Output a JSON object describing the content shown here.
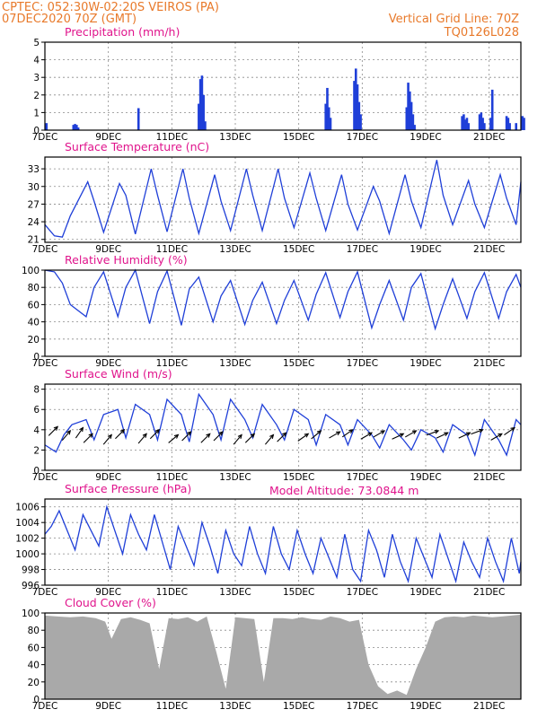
{
  "header": {
    "line1_left": "CPTEC:   052:30W-02:20S   VEIROS (PA)",
    "line2_left": "07DEC2020 70Z (GMT)",
    "line1_right": "Vertical Grid Line: 70Z",
    "line2_right": "TQ0126L028",
    "model_altitude": "Model Altitude: 73.0844 m"
  },
  "colors": {
    "header": "#e8792a",
    "title": "#e0148c",
    "series": "#1f3fd8",
    "cloud": "#a9a9a9",
    "wind": "#000000"
  },
  "x_ticks": [
    "7DEC",
    "9DEC",
    "11DEC",
    "13DEC",
    "15DEC",
    "17DEC",
    "19DEC",
    "21DEC"
  ],
  "chart_data": [
    {
      "type": "bar",
      "title": "Precipitation (mm/h)",
      "ylim": [
        0,
        5
      ],
      "yticks": [
        0,
        1,
        2,
        3,
        4,
        5
      ],
      "x_unit": "days since 7DEC 70Z",
      "x": [
        0.05,
        0.9,
        0.95,
        1.0,
        1.05,
        2.95,
        4.85,
        4.9,
        4.95,
        5.0,
        5.05,
        8.85,
        8.9,
        8.95,
        9.0,
        9.75,
        9.8,
        9.85,
        9.9,
        9.95,
        11.4,
        11.45,
        11.5,
        11.55,
        11.6,
        11.65,
        13.15,
        13.2,
        13.25,
        13.3,
        13.35,
        13.7,
        13.75,
        13.8,
        13.85,
        14.05,
        14.1,
        14.55,
        14.6,
        14.65,
        14.85,
        15.05,
        15.1
      ],
      "values": [
        0.4,
        0.3,
        0.35,
        0.3,
        0.15,
        1.25,
        1.5,
        2.9,
        3.1,
        2.0,
        0.5,
        1.5,
        2.4,
        1.3,
        0.7,
        2.8,
        3.5,
        2.6,
        1.6,
        0.9,
        1.3,
        2.7,
        2.2,
        1.6,
        0.9,
        0.3,
        0.8,
        0.9,
        0.6,
        0.7,
        0.4,
        0.9,
        1.0,
        0.7,
        0.4,
        0.7,
        2.3,
        0.8,
        0.7,
        0.4,
        0.4,
        0.8,
        0.7
      ]
    },
    {
      "type": "line",
      "title": "Surface Temperature (nC)",
      "ylim": [
        20.5,
        35
      ],
      "yticks": [
        21,
        24,
        27,
        30,
        33
      ],
      "x_unit": "days since 7DEC 70Z",
      "x": [
        0.0,
        0.3,
        0.55,
        0.8,
        1.35,
        1.55,
        1.85,
        2.35,
        2.55,
        2.85,
        3.35,
        3.55,
        3.85,
        4.35,
        4.55,
        4.85,
        5.35,
        5.55,
        5.85,
        6.35,
        6.55,
        6.85,
        7.35,
        7.55,
        7.85,
        8.35,
        8.55,
        8.85,
        9.35,
        9.55,
        9.85,
        10.35,
        10.55,
        10.85,
        11.35,
        11.55,
        11.85,
        12.35,
        12.55,
        12.85,
        13.35,
        13.55,
        13.85,
        14.35,
        14.55,
        14.85,
        15.0
      ],
      "values": [
        23.5,
        21.6,
        21.4,
        25.0,
        30.8,
        27.5,
        22.2,
        30.5,
        28.5,
        21.9,
        33.0,
        28.5,
        22.3,
        33.0,
        28.0,
        22.0,
        32.0,
        27.5,
        22.5,
        33.0,
        28.5,
        22.5,
        33.0,
        28.0,
        23.0,
        32.3,
        28.0,
        22.5,
        32.0,
        27.0,
        22.6,
        30.0,
        27.5,
        22.0,
        32.0,
        27.5,
        23.0,
        34.5,
        28.5,
        23.5,
        31.0,
        27.0,
        23.0,
        32.0,
        28.0,
        23.5,
        30.8
      ]
    },
    {
      "type": "line",
      "title": "Relative Humidity (%)",
      "ylim": [
        0,
        100
      ],
      "yticks": [
        0,
        20,
        40,
        60,
        80,
        100
      ],
      "x_unit": "days since 7DEC 70Z",
      "x": [
        0.0,
        0.3,
        0.55,
        0.8,
        1.3,
        1.55,
        1.85,
        2.3,
        2.55,
        2.85,
        3.3,
        3.55,
        3.85,
        4.3,
        4.55,
        4.85,
        5.3,
        5.55,
        5.85,
        6.3,
        6.55,
        6.85,
        7.3,
        7.55,
        7.85,
        8.3,
        8.55,
        8.85,
        9.3,
        9.55,
        9.85,
        10.3,
        10.55,
        10.85,
        11.3,
        11.55,
        11.85,
        12.3,
        12.55,
        12.85,
        13.3,
        13.55,
        13.85,
        14.3,
        14.55,
        14.85,
        15.0
      ],
      "values": [
        100,
        98,
        85,
        60,
        46,
        80,
        98,
        46,
        80,
        100,
        38,
        75,
        99,
        36,
        78,
        92,
        40,
        70,
        88,
        37,
        65,
        86,
        38,
        65,
        88,
        42,
        72,
        97,
        45,
        75,
        98,
        33,
        60,
        88,
        42,
        80,
        96,
        32,
        60,
        90,
        44,
        75,
        97,
        44,
        75,
        95,
        80
      ]
    },
    {
      "type": "line",
      "title": "Surface Wind (m/s)",
      "ylim": [
        0,
        8.5
      ],
      "yticks": [
        0,
        2,
        4,
        6,
        8
      ],
      "x_unit": "days since 7DEC 70Z",
      "x": [
        0.0,
        0.35,
        0.6,
        0.85,
        1.3,
        1.55,
        1.85,
        2.3,
        2.55,
        2.85,
        3.3,
        3.55,
        3.85,
        4.3,
        4.55,
        4.85,
        5.3,
        5.55,
        5.85,
        6.3,
        6.55,
        6.85,
        7.3,
        7.55,
        7.85,
        8.3,
        8.55,
        8.85,
        9.3,
        9.55,
        9.85,
        10.3,
        10.55,
        10.85,
        11.3,
        11.55,
        11.85,
        12.3,
        12.55,
        12.85,
        13.3,
        13.55,
        13.85,
        14.3,
        14.55,
        14.85,
        15.0
      ],
      "values": [
        2.5,
        1.8,
        3.5,
        4.5,
        5.0,
        3.0,
        5.5,
        6.0,
        3.2,
        6.5,
        5.5,
        3.0,
        7.0,
        5.5,
        2.8,
        7.5,
        5.5,
        3.0,
        7.0,
        5.0,
        3.2,
        6.5,
        4.5,
        3.0,
        6.0,
        5.0,
        2.5,
        5.5,
        4.5,
        2.5,
        5.0,
        3.5,
        2.2,
        4.5,
        3.0,
        2.0,
        4.0,
        3.2,
        1.8,
        4.5,
        3.5,
        1.5,
        5.0,
        3.0,
        1.5,
        5.0,
        4.5
      ],
      "barbs": [
        {
          "x": 0.4,
          "y": 4.3,
          "dir": 225
        },
        {
          "x": 0.8,
          "y": 3.9,
          "dir": 220
        },
        {
          "x": 1.2,
          "y": 4.2,
          "dir": 215
        },
        {
          "x": 1.5,
          "y": 3.6,
          "dir": 225
        },
        {
          "x": 2.1,
          "y": 3.5,
          "dir": 220
        },
        {
          "x": 2.5,
          "y": 4.0,
          "dir": 225
        },
        {
          "x": 3.2,
          "y": 3.6,
          "dir": 220
        },
        {
          "x": 3.6,
          "y": 4.0,
          "dir": 225
        },
        {
          "x": 4.2,
          "y": 3.5,
          "dir": 230
        },
        {
          "x": 4.6,
          "y": 3.8,
          "dir": 225
        },
        {
          "x": 5.2,
          "y": 3.6,
          "dir": 225
        },
        {
          "x": 5.6,
          "y": 3.8,
          "dir": 225
        },
        {
          "x": 6.2,
          "y": 3.5,
          "dir": 220
        },
        {
          "x": 6.6,
          "y": 3.6,
          "dir": 225
        },
        {
          "x": 7.2,
          "y": 3.5,
          "dir": 220
        },
        {
          "x": 7.6,
          "y": 3.7,
          "dir": 225
        },
        {
          "x": 8.3,
          "y": 3.6,
          "dir": 235
        },
        {
          "x": 8.7,
          "y": 3.9,
          "dir": 230
        },
        {
          "x": 9.3,
          "y": 3.8,
          "dir": 240
        },
        {
          "x": 9.7,
          "y": 4.0,
          "dir": 235
        },
        {
          "x": 10.3,
          "y": 3.7,
          "dir": 240
        },
        {
          "x": 10.7,
          "y": 3.9,
          "dir": 240
        },
        {
          "x": 11.3,
          "y": 3.6,
          "dir": 245
        },
        {
          "x": 11.7,
          "y": 3.9,
          "dir": 240
        },
        {
          "x": 12.4,
          "y": 3.9,
          "dir": 250
        },
        {
          "x": 12.7,
          "y": 3.7,
          "dir": 245
        },
        {
          "x": 13.4,
          "y": 3.7,
          "dir": 245
        },
        {
          "x": 13.8,
          "y": 4.0,
          "dir": 250
        },
        {
          "x": 14.4,
          "y": 3.6,
          "dir": 240
        },
        {
          "x": 14.8,
          "y": 4.2,
          "dir": 235
        }
      ]
    },
    {
      "type": "line",
      "title": "Surface Pressure (hPa)",
      "ylim": [
        996,
        1007
      ],
      "yticks": [
        996,
        998,
        1000,
        1002,
        1004,
        1006
      ],
      "x_unit": "days since 7DEC 70Z",
      "x": [
        0.0,
        0.2,
        0.45,
        0.7,
        0.95,
        1.2,
        1.45,
        1.7,
        1.95,
        2.2,
        2.45,
        2.7,
        2.95,
        3.2,
        3.45,
        3.7,
        3.95,
        4.2,
        4.45,
        4.7,
        4.95,
        5.2,
        5.45,
        5.7,
        5.95,
        6.2,
        6.45,
        6.7,
        6.95,
        7.2,
        7.45,
        7.7,
        7.95,
        8.2,
        8.45,
        8.7,
        8.95,
        9.2,
        9.45,
        9.7,
        9.95,
        10.2,
        10.45,
        10.7,
        10.95,
        11.2,
        11.45,
        11.7,
        11.95,
        12.2,
        12.45,
        12.7,
        12.95,
        13.2,
        13.45,
        13.7,
        13.95,
        14.2,
        14.45,
        14.7,
        14.95,
        15.0
      ],
      "values": [
        1002.5,
        1003.5,
        1005.5,
        1003.0,
        1000.5,
        1005.0,
        1003.0,
        1001.0,
        1006.0,
        1003.0,
        1000.0,
        1005.0,
        1002.5,
        1000.5,
        1005.0,
        1001.5,
        998.0,
        1003.5,
        1001.0,
        998.5,
        1004.0,
        1001.0,
        997.5,
        1003.0,
        1000.0,
        998.5,
        1003.5,
        1000.0,
        997.5,
        1003.5,
        1000.0,
        998.0,
        1003.0,
        1000.0,
        997.5,
        1002.0,
        999.5,
        997.0,
        1002.5,
        998.0,
        996.5,
        1003.0,
        1000.5,
        997.0,
        1002.5,
        999.0,
        996.5,
        1002.0,
        999.5,
        997.0,
        1002.5,
        999.5,
        996.5,
        1001.5,
        999.0,
        997.0,
        1002.0,
        999.0,
        996.5,
        1002.0,
        997.5,
        999.0
      ]
    },
    {
      "type": "area",
      "title": "Cloud Cover (%)",
      "ylim": [
        0,
        100
      ],
      "yticks": [
        0,
        20,
        40,
        60,
        80,
        100
      ],
      "x_unit": "days since 7DEC 70Z",
      "x": [
        0.0,
        0.4,
        0.8,
        1.2,
        1.6,
        1.9,
        2.1,
        2.4,
        2.7,
        3.0,
        3.3,
        3.6,
        3.9,
        4.2,
        4.5,
        4.8,
        5.1,
        5.4,
        5.7,
        6.0,
        6.3,
        6.6,
        6.9,
        7.2,
        7.5,
        7.8,
        8.1,
        8.4,
        8.7,
        9.0,
        9.3,
        9.6,
        9.9,
        10.2,
        10.5,
        10.8,
        11.1,
        11.4,
        11.7,
        12.0,
        12.3,
        12.6,
        12.9,
        13.2,
        13.5,
        13.8,
        14.1,
        14.4,
        14.7,
        15.0
      ],
      "values": [
        97,
        96,
        95,
        96,
        94,
        90,
        70,
        93,
        95,
        92,
        88,
        35,
        94,
        93,
        95,
        90,
        96,
        55,
        12,
        95,
        94,
        93,
        20,
        94,
        94,
        93,
        95,
        93,
        92,
        96,
        94,
        90,
        92,
        40,
        15,
        6,
        10,
        5,
        35,
        60,
        90,
        95,
        96,
        95,
        97,
        96,
        95,
        96,
        97,
        98
      ]
    }
  ]
}
